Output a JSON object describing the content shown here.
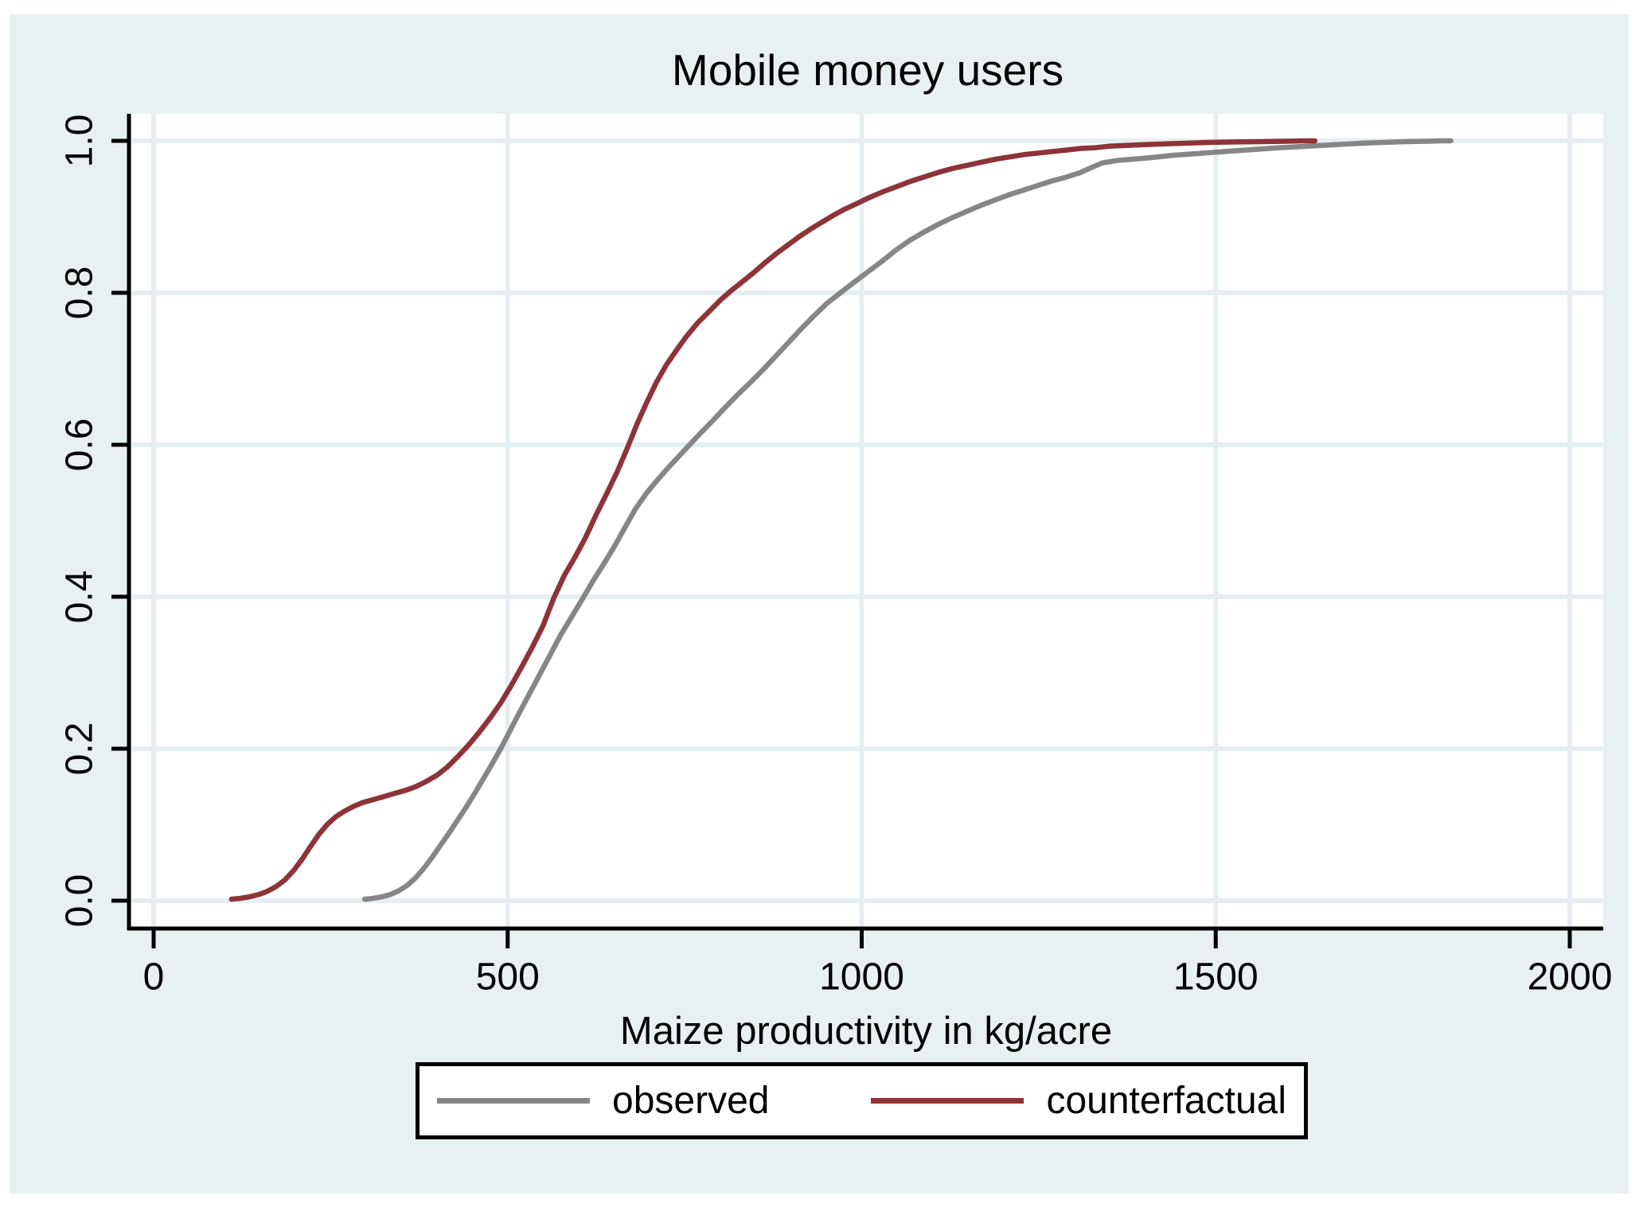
{
  "window": {
    "title": "Mobile money users"
  },
  "colors": {
    "canvas_background": "#e9f0f2",
    "plot_background": "#ffffff",
    "gridline": "#e6eef1",
    "axis": "#000000",
    "observed_line": "#868686",
    "counterfactual_line": "#8e3338",
    "legend_border": "#000000",
    "text": "#000000"
  },
  "chart_data": {
    "type": "line",
    "subtype": "empirical-cdf",
    "title": "Mobile money users",
    "xlabel": "Maize productivity in kg/acre",
    "ylabel": "",
    "xlim": [
      0,
      2000
    ],
    "ylim": [
      0.0,
      1.0
    ],
    "xticks": [
      "0",
      "500",
      "1000",
      "1500",
      "2000"
    ],
    "xtick_values": [
      0,
      500,
      1000,
      1500,
      2000
    ],
    "yticks": [
      "0.0",
      "0.2",
      "0.4",
      "0.6",
      "0.8",
      "1.0"
    ],
    "ytick_values": [
      0.0,
      0.2,
      0.4,
      0.6,
      0.8,
      1.0
    ],
    "grid": true,
    "legend_position": "bottom-center",
    "series": [
      {
        "name": "observed",
        "color": "#868686",
        "points": [
          [
            298,
            0.002
          ],
          [
            310,
            0.003
          ],
          [
            322,
            0.005
          ],
          [
            334,
            0.008
          ],
          [
            346,
            0.013
          ],
          [
            358,
            0.02
          ],
          [
            370,
            0.03
          ],
          [
            382,
            0.043
          ],
          [
            394,
            0.058
          ],
          [
            406,
            0.074
          ],
          [
            418,
            0.09
          ],
          [
            430,
            0.107
          ],
          [
            442,
            0.124
          ],
          [
            454,
            0.142
          ],
          [
            466,
            0.161
          ],
          [
            478,
            0.18
          ],
          [
            490,
            0.2
          ],
          [
            502,
            0.221
          ],
          [
            514,
            0.243
          ],
          [
            526,
            0.264
          ],
          [
            538,
            0.285
          ],
          [
            550,
            0.306
          ],
          [
            562,
            0.327
          ],
          [
            575,
            0.35
          ],
          [
            590,
            0.373
          ],
          [
            605,
            0.396
          ],
          [
            620,
            0.42
          ],
          [
            635,
            0.442
          ],
          [
            650,
            0.465
          ],
          [
            665,
            0.49
          ],
          [
            680,
            0.515
          ],
          [
            695,
            0.535
          ],
          [
            710,
            0.552
          ],
          [
            725,
            0.568
          ],
          [
            740,
            0.583
          ],
          [
            755,
            0.598
          ],
          [
            772,
            0.615
          ],
          [
            790,
            0.632
          ],
          [
            808,
            0.65
          ],
          [
            826,
            0.667
          ],
          [
            844,
            0.683
          ],
          [
            862,
            0.7
          ],
          [
            880,
            0.718
          ],
          [
            898,
            0.736
          ],
          [
            916,
            0.754
          ],
          [
            934,
            0.771
          ],
          [
            952,
            0.787
          ],
          [
            970,
            0.8
          ],
          [
            988,
            0.813
          ],
          [
            1008,
            0.827
          ],
          [
            1028,
            0.841
          ],
          [
            1048,
            0.856
          ],
          [
            1068,
            0.869
          ],
          [
            1088,
            0.88
          ],
          [
            1108,
            0.89
          ],
          [
            1128,
            0.899
          ],
          [
            1148,
            0.907
          ],
          [
            1168,
            0.915
          ],
          [
            1188,
            0.922
          ],
          [
            1208,
            0.929
          ],
          [
            1228,
            0.935
          ],
          [
            1248,
            0.941
          ],
          [
            1268,
            0.947
          ],
          [
            1288,
            0.952
          ],
          [
            1308,
            0.958
          ],
          [
            1325,
            0.965
          ],
          [
            1340,
            0.971
          ],
          [
            1360,
            0.974
          ],
          [
            1385,
            0.976
          ],
          [
            1410,
            0.978
          ],
          [
            1440,
            0.981
          ],
          [
            1470,
            0.983
          ],
          [
            1500,
            0.985
          ],
          [
            1530,
            0.987
          ],
          [
            1560,
            0.989
          ],
          [
            1590,
            0.991
          ],
          [
            1620,
            0.9925
          ],
          [
            1650,
            0.994
          ],
          [
            1680,
            0.9955
          ],
          [
            1710,
            0.997
          ],
          [
            1740,
            0.998
          ],
          [
            1770,
            0.999
          ],
          [
            1800,
            0.9995
          ],
          [
            1818,
            1.0
          ],
          [
            1832,
            1.0
          ]
        ]
      },
      {
        "name": "counterfactual",
        "color": "#8e3338",
        "points": [
          [
            110,
            0.002
          ],
          [
            122,
            0.003
          ],
          [
            135,
            0.005
          ],
          [
            148,
            0.008
          ],
          [
            160,
            0.012
          ],
          [
            172,
            0.018
          ],
          [
            185,
            0.027
          ],
          [
            198,
            0.04
          ],
          [
            210,
            0.055
          ],
          [
            222,
            0.072
          ],
          [
            234,
            0.088
          ],
          [
            246,
            0.101
          ],
          [
            258,
            0.111
          ],
          [
            270,
            0.118
          ],
          [
            282,
            0.124
          ],
          [
            295,
            0.129
          ],
          [
            310,
            0.133
          ],
          [
            325,
            0.137
          ],
          [
            340,
            0.141
          ],
          [
            355,
            0.145
          ],
          [
            370,
            0.15
          ],
          [
            385,
            0.157
          ],
          [
            400,
            0.165
          ],
          [
            415,
            0.176
          ],
          [
            430,
            0.19
          ],
          [
            445,
            0.205
          ],
          [
            460,
            0.222
          ],
          [
            475,
            0.24
          ],
          [
            490,
            0.26
          ],
          [
            505,
            0.283
          ],
          [
            520,
            0.308
          ],
          [
            535,
            0.334
          ],
          [
            550,
            0.362
          ],
          [
            565,
            0.398
          ],
          [
            580,
            0.428
          ],
          [
            595,
            0.452
          ],
          [
            610,
            0.478
          ],
          [
            625,
            0.508
          ],
          [
            640,
            0.536
          ],
          [
            655,
            0.565
          ],
          [
            670,
            0.598
          ],
          [
            683,
            0.628
          ],
          [
            696,
            0.655
          ],
          [
            710,
            0.682
          ],
          [
            724,
            0.705
          ],
          [
            738,
            0.724
          ],
          [
            752,
            0.742
          ],
          [
            768,
            0.76
          ],
          [
            784,
            0.775
          ],
          [
            800,
            0.79
          ],
          [
            816,
            0.803
          ],
          [
            832,
            0.815
          ],
          [
            848,
            0.827
          ],
          [
            864,
            0.84
          ],
          [
            880,
            0.852
          ],
          [
            896,
            0.863
          ],
          [
            912,
            0.874
          ],
          [
            928,
            0.884
          ],
          [
            944,
            0.893
          ],
          [
            960,
            0.902
          ],
          [
            976,
            0.91
          ],
          [
            992,
            0.917
          ],
          [
            1010,
            0.925
          ],
          [
            1030,
            0.933
          ],
          [
            1050,
            0.94
          ],
          [
            1070,
            0.947
          ],
          [
            1090,
            0.953
          ],
          [
            1110,
            0.959
          ],
          [
            1130,
            0.964
          ],
          [
            1150,
            0.968
          ],
          [
            1170,
            0.972
          ],
          [
            1190,
            0.976
          ],
          [
            1210,
            0.979
          ],
          [
            1230,
            0.982
          ],
          [
            1250,
            0.984
          ],
          [
            1270,
            0.986
          ],
          [
            1290,
            0.988
          ],
          [
            1310,
            0.99
          ],
          [
            1330,
            0.991
          ],
          [
            1350,
            0.993
          ],
          [
            1375,
            0.994
          ],
          [
            1400,
            0.995
          ],
          [
            1430,
            0.996
          ],
          [
            1460,
            0.997
          ],
          [
            1495,
            0.998
          ],
          [
            1530,
            0.9985
          ],
          [
            1565,
            0.999
          ],
          [
            1600,
            0.9995
          ],
          [
            1625,
            1.0
          ],
          [
            1640,
            1.0
          ]
        ]
      }
    ]
  },
  "legend": {
    "entries": [
      {
        "label": "observed"
      },
      {
        "label": "counterfactual"
      }
    ]
  }
}
